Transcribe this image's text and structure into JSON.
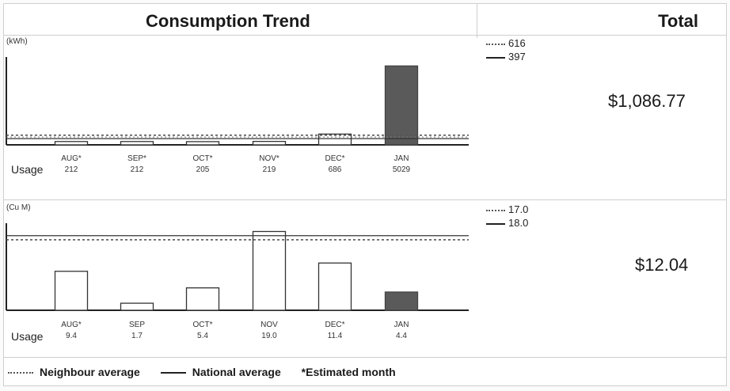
{
  "header": {
    "title": "Consumption Trend",
    "total_label": "Total"
  },
  "footer": {
    "neighbour_label": "Neighbour average",
    "national_label": "National average",
    "estimated_label": "*Estimated month"
  },
  "chart_data": [
    {
      "type": "bar",
      "unit_label": "(kWh)",
      "row_label": "Usage",
      "categories": [
        "AUG*",
        "SEP*",
        "OCT*",
        "NOV*",
        "DEC*",
        "JAN"
      ],
      "values": [
        212,
        212,
        205,
        219,
        686,
        5029
      ],
      "value_labels": [
        "212",
        "212",
        "205",
        "219",
        "686",
        "5029"
      ],
      "neighbour_average": 616,
      "national_average": 397,
      "neighbour_label": "616",
      "national_label": "397",
      "ylim": [
        0,
        5600
      ],
      "estimated": [
        true,
        true,
        true,
        true,
        true,
        false
      ],
      "total": "$1,086.77"
    },
    {
      "type": "bar",
      "unit_label": "(Cu M)",
      "row_label": "Usage",
      "categories": [
        "AUG*",
        "SEP",
        "OCT*",
        "NOV",
        "DEC*",
        "JAN"
      ],
      "values": [
        9.4,
        1.7,
        5.4,
        19.0,
        11.4,
        4.4
      ],
      "value_labels": [
        "9.4",
        "1.7",
        "5.4",
        "19.0",
        "11.4",
        "4.4"
      ],
      "neighbour_average": 17.0,
      "national_average": 18.0,
      "neighbour_label": "17.0",
      "national_label": "18.0",
      "ylim": [
        0,
        21
      ],
      "estimated": [
        true,
        false,
        true,
        false,
        true,
        false
      ],
      "total": "$12.04"
    }
  ]
}
